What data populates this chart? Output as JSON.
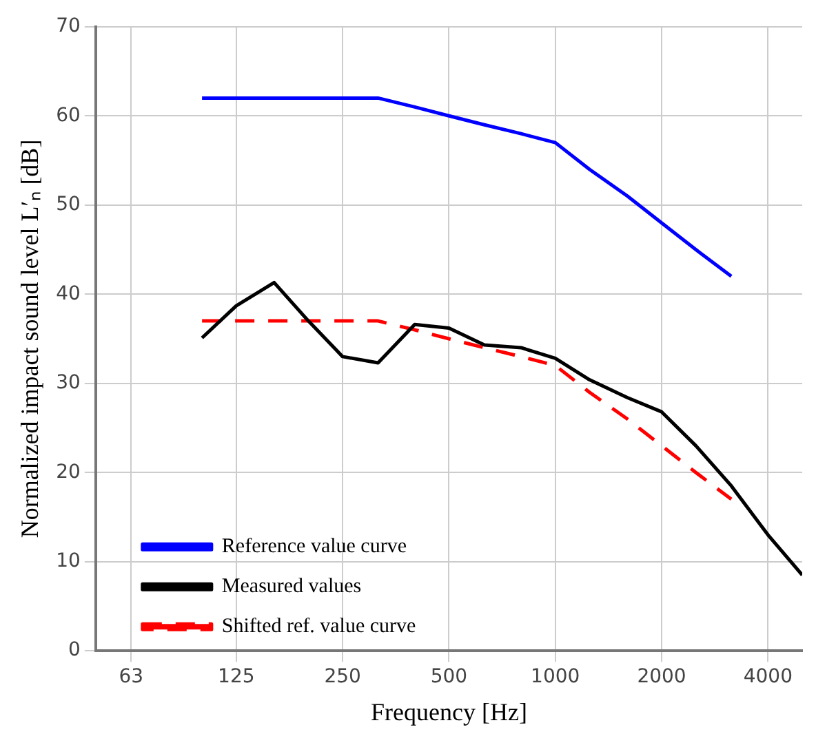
{
  "chart_data": {
    "type": "line",
    "xlabel": "Frequency [Hz]",
    "ylabel": "Normalized impact sound level L′ₙ [dB]",
    "log": "x",
    "xlim": [
      50,
      5000
    ],
    "xticks": [
      63,
      125,
      250,
      500,
      1000,
      2000,
      4000
    ],
    "ylim": [
      0,
      70
    ],
    "yticks": [
      0,
      10,
      20,
      30,
      40,
      50,
      60,
      70
    ],
    "grid": true,
    "legend": "bottom left",
    "series": [
      {
        "name": "Reference value curve",
        "color": "#0000ff",
        "line_style": "solid",
        "x": [
          100,
          125,
          160,
          200,
          250,
          315,
          400,
          500,
          630,
          800,
          1000,
          1250,
          1600,
          2000,
          2500,
          3150
        ],
        "values": [
          62,
          62,
          62,
          62,
          62,
          62,
          61,
          60,
          59,
          58,
          57,
          54,
          51,
          48,
          45,
          42
        ]
      },
      {
        "name": "Measured values",
        "color": "#000000",
        "line_style": "solid",
        "x": [
          100,
          125,
          160,
          200,
          250,
          315,
          400,
          500,
          630,
          800,
          1000,
          1250,
          1600,
          2000,
          2500,
          3150,
          4000,
          5000
        ],
        "values": [
          35.1,
          38.7,
          41.3,
          37,
          33,
          32.3,
          36.6,
          36.2,
          34.3,
          34,
          32.8,
          30.4,
          28.4,
          26.8,
          23,
          18.5,
          13,
          8.5
        ]
      },
      {
        "name": "Shifted ref. value curve",
        "color": "#ff0000",
        "line_style": "dashed",
        "x": [
          100,
          125,
          160,
          200,
          250,
          315,
          400,
          500,
          630,
          800,
          1000,
          1250,
          1600,
          2000,
          2500,
          3150
        ],
        "values": [
          37,
          37,
          37,
          37,
          37,
          37,
          36,
          35,
          34,
          33,
          32,
          29,
          26,
          23,
          20,
          17
        ]
      }
    ]
  }
}
